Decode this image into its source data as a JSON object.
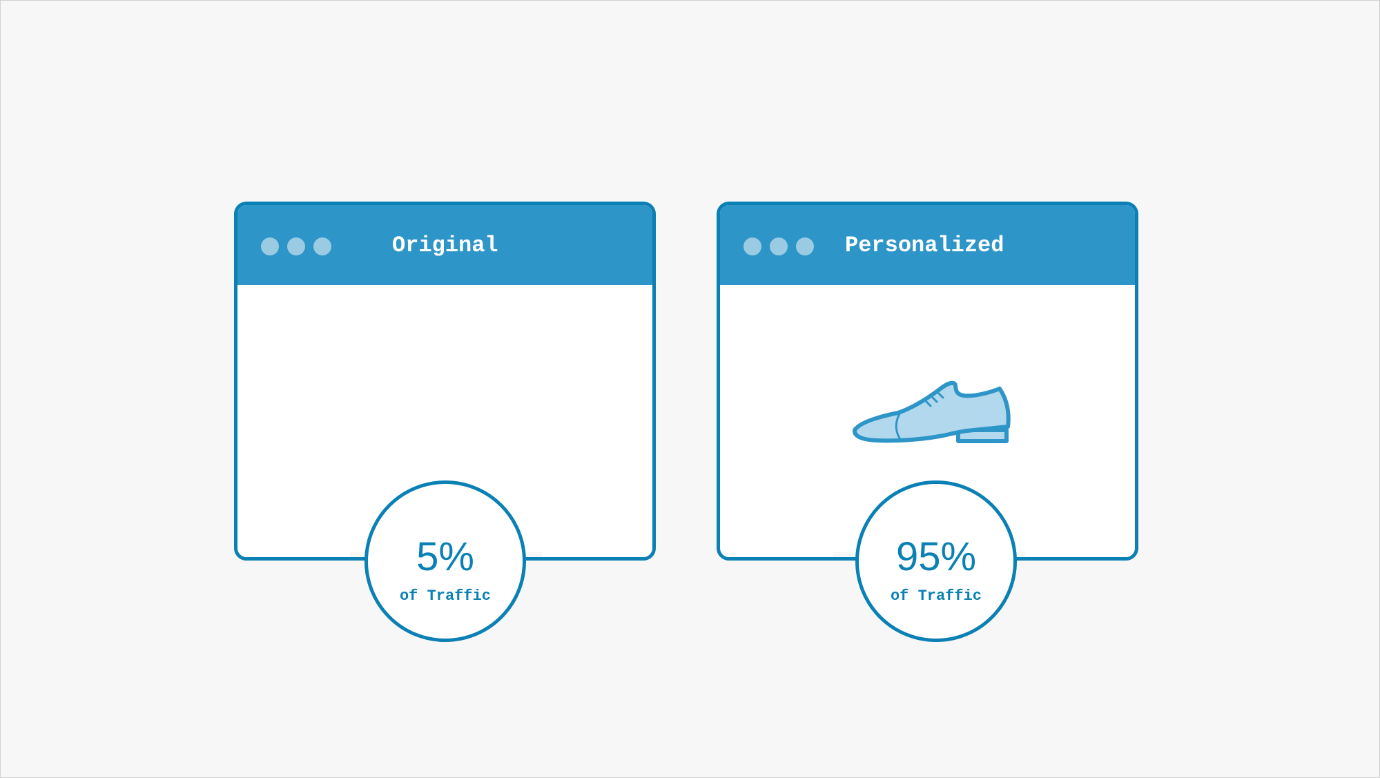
{
  "accent_color": "#0a80b4",
  "header_color": "#2e95c8",
  "windows": [
    {
      "title": "Original",
      "traffic_percent": "5%",
      "traffic_label": "of Traffic",
      "content_icon": null
    },
    {
      "title": "Personalized",
      "traffic_percent": "95%",
      "traffic_label": "of Traffic",
      "content_icon": "shoe-icon"
    }
  ]
}
